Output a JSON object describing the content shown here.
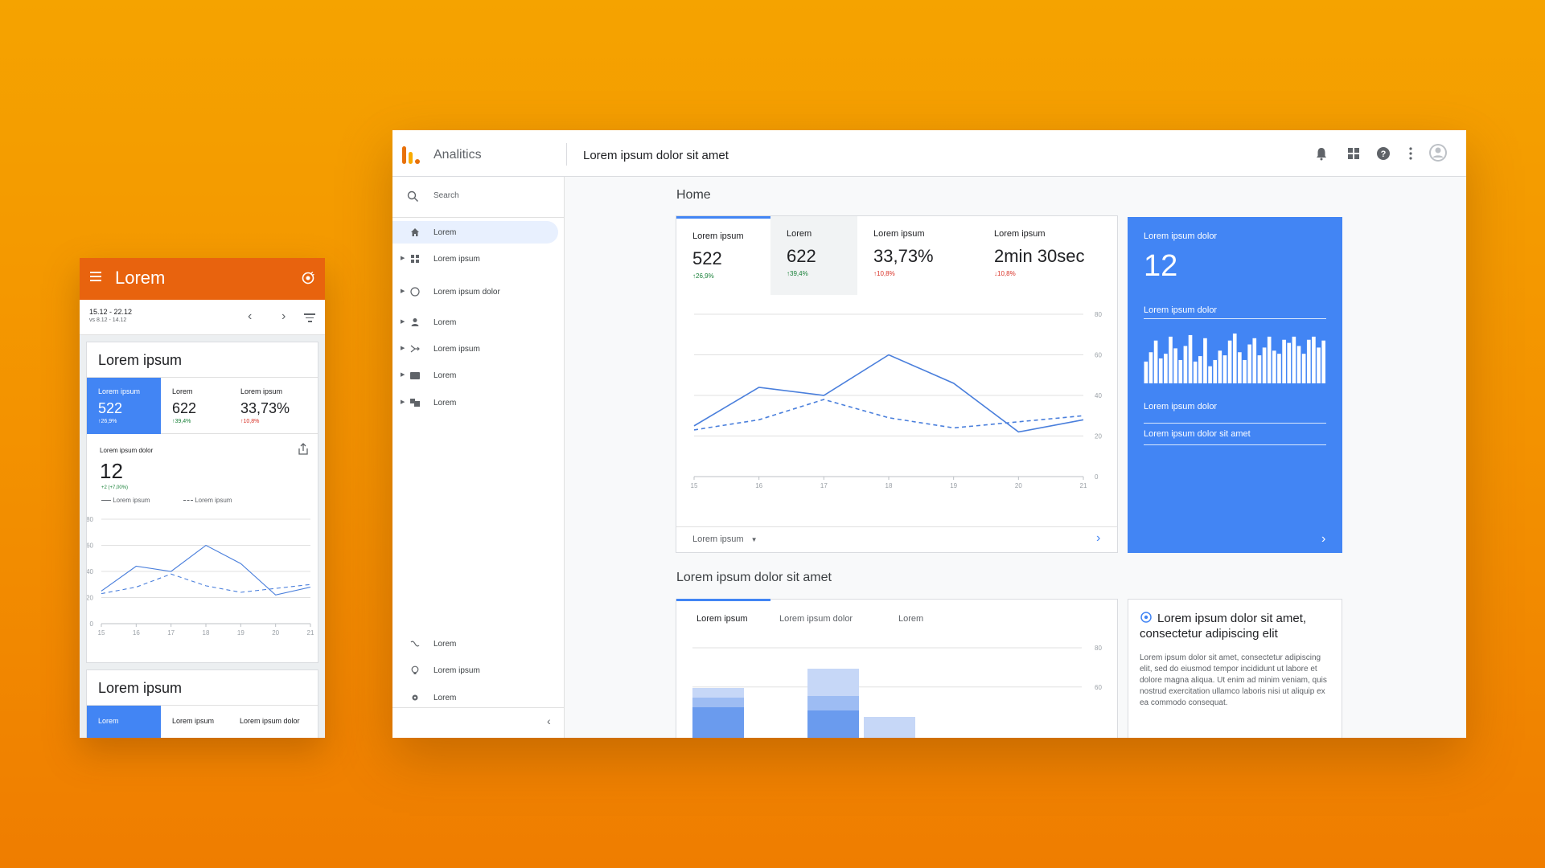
{
  "mobile": {
    "app_title": "Lorem",
    "date_range": "15.12 - 22.12",
    "compare_range": "vs 8.12 - 14.12",
    "card1": {
      "title": "Lorem ipsum",
      "tabs": [
        {
          "label": "Lorem ipsum",
          "value": "522",
          "change": "↑26,9%"
        },
        {
          "label": "Lorem",
          "value": "622",
          "change": "↑39,4%"
        },
        {
          "label": "Lorem ipsum",
          "value": "33,73%",
          "change": "↑10,8%"
        }
      ],
      "metric_label": "Lorem ipsum dolor",
      "metric_value": "12",
      "metric_change": "+2 (+7,00%)",
      "legend_solid": "Lorem ipsum",
      "legend_dashed": "Lorem ipsum"
    },
    "card2": {
      "title": "Lorem ipsum",
      "tabs": [
        "Lorem",
        "Lorem ipsum",
        "Lorem ipsum dolor"
      ]
    }
  },
  "desktop": {
    "app_name": "Analitics",
    "page_title": "Lorem ipsum dolor sit amet",
    "search_placeholder": "Search",
    "sidebar_items": [
      "Lorem",
      "Lorem ipsum",
      "Lorem ipsum dolor",
      "Lorem",
      "Lorem ipsum",
      "Lorem",
      "Lorem"
    ],
    "sidebar_bottom": [
      "Lorem",
      "Lorem ipsum",
      "Lorem"
    ],
    "home_title": "Home",
    "kpis": [
      {
        "label": "Lorem ipsum",
        "value": "522",
        "change": "↑26,9%"
      },
      {
        "label": "Lorem",
        "value": "622",
        "change": "↑39,4%"
      },
      {
        "label": "Lorem ipsum",
        "value": "33,73%",
        "change": "↑10,8%"
      },
      {
        "label": "Lorem ipsum",
        "value": "2min 30sec",
        "change": "↓10,8%"
      }
    ],
    "footer_select": "Lorem ipsum",
    "blue_card": {
      "label": "Lorem ipsum dolor",
      "value": "12",
      "subtitle": "Lorem ipsum dolor",
      "row1": "Lorem ipsum dolor",
      "row2": "Lorem ipsum dolor sit amet"
    },
    "section2_title": "Lorem ipsum dolor sit amet",
    "section2_tabs": [
      "Lorem ipsum",
      "Lorem ipsum dolor",
      "Lorem"
    ],
    "insight": {
      "title": "Lorem ipsum dolor sit amet, consectetur adipiscing elit",
      "body": "Lorem ipsum dolor sit amet, consectetur adipiscing elit, sed do eiusmod tempor incididunt ut labore et dolore magna aliqua. Ut enim ad minim veniam, quis nostrud exercitation ullamco laboris nisi ut aliquip ex ea commodo consequat."
    }
  },
  "colors": {
    "accent": "#4285f4",
    "appbar": "#e8630e",
    "up": "#188038",
    "down": "#d93025"
  },
  "chart_data": [
    {
      "type": "line",
      "x": [
        15,
        16,
        17,
        18,
        19,
        20,
        21
      ],
      "series": [
        {
          "style": "solid",
          "values": [
            25,
            44,
            40,
            60,
            46,
            22,
            28
          ]
        },
        {
          "style": "dashed",
          "values": [
            23,
            28,
            38,
            29,
            24,
            27,
            30
          ]
        }
      ],
      "ylim": [
        0,
        80
      ],
      "yticks": [
        0,
        20,
        40,
        60,
        80
      ]
    },
    {
      "type": "bar",
      "values": [
        28,
        40,
        55,
        32,
        38,
        60,
        45,
        30,
        48,
        62,
        28,
        35,
        58,
        22,
        30,
        42,
        36,
        55,
        64,
        40,
        30,
        50,
        58,
        36,
        46,
        60,
        42,
        38,
        56,
        52,
        60,
        48,
        38,
        56,
        60,
        46,
        55
      ]
    },
    {
      "type": "bar",
      "categories": [
        "Lorem ipsum",
        "",
        "Lorem ipsum dolor",
        "Lorem"
      ],
      "ylim": [
        0,
        80
      ],
      "yticks": [
        60,
        80
      ]
    }
  ]
}
